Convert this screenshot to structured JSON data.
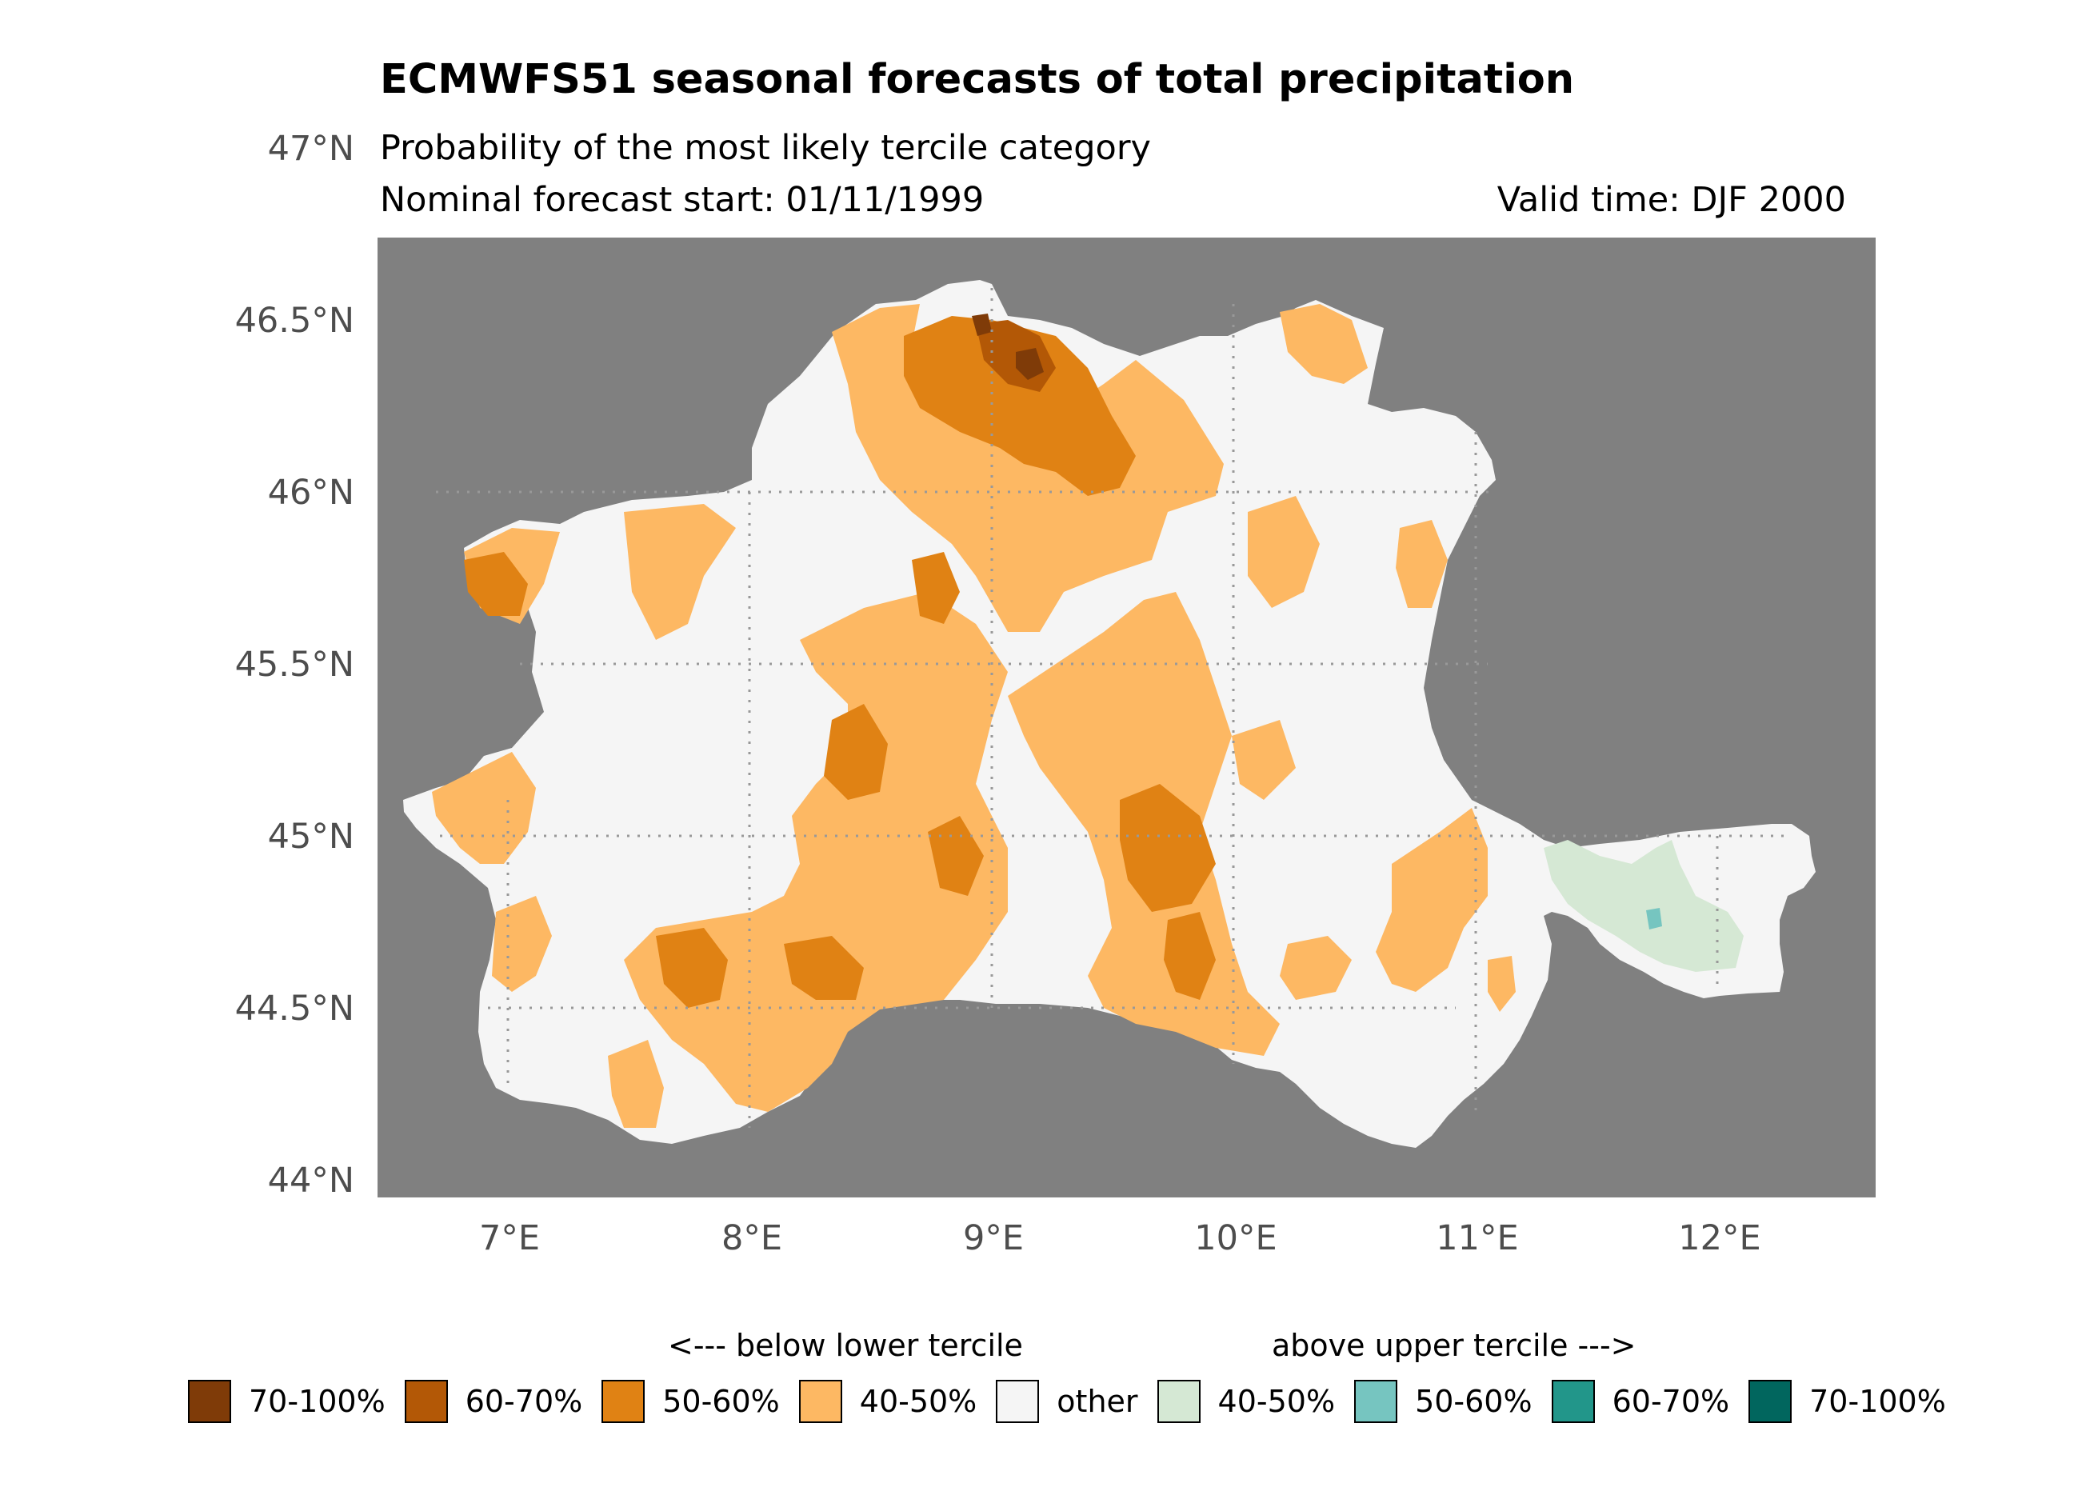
{
  "title": "ECMWFS51 seasonal forecasts of total precipitation",
  "subtitle": "Probability of the most likely tercile category",
  "forecast_start": "Nominal forecast start: 01/11/1999",
  "valid_time": "Valid time: DJF 2000",
  "colors": {
    "ocean": "#808080",
    "other": "#f5f5f5",
    "below_40_50": "#fdb863",
    "below_50_60": "#e08214",
    "below_60_70": "#b35806",
    "below_70_100": "#7f3b08",
    "above_40_50": "#d5e8d4",
    "above_50_60": "#76c5c0",
    "above_60_70": "#22968a",
    "above_70_100": "#01665e"
  },
  "axes": {
    "lat_labels": [
      "47°N",
      "46.5°N",
      "46°N",
      "45.5°N",
      "45°N",
      "44.5°N",
      "44°N"
    ],
    "lon_labels": [
      "7°E",
      "8°E",
      "9°E",
      "10°E",
      "11°E",
      "12°E"
    ]
  },
  "legend": {
    "below_header": "<--- below lower tercile",
    "above_header": "above upper tercile --->",
    "items": [
      {
        "label": "70-100%",
        "color": "#7f3b08"
      },
      {
        "label": "60-70%",
        "color": "#b35806"
      },
      {
        "label": "50-60%",
        "color": "#e08214"
      },
      {
        "label": "40-50%",
        "color": "#fdb863"
      },
      {
        "label": "other",
        "color": "#f5f5f5"
      },
      {
        "label": "40-50%",
        "color": "#d5e8d4"
      },
      {
        "label": "50-60%",
        "color": "#76c5c0"
      },
      {
        "label": "60-70%",
        "color": "#22968a"
      },
      {
        "label": "70-100%",
        "color": "#01665e"
      }
    ]
  }
}
